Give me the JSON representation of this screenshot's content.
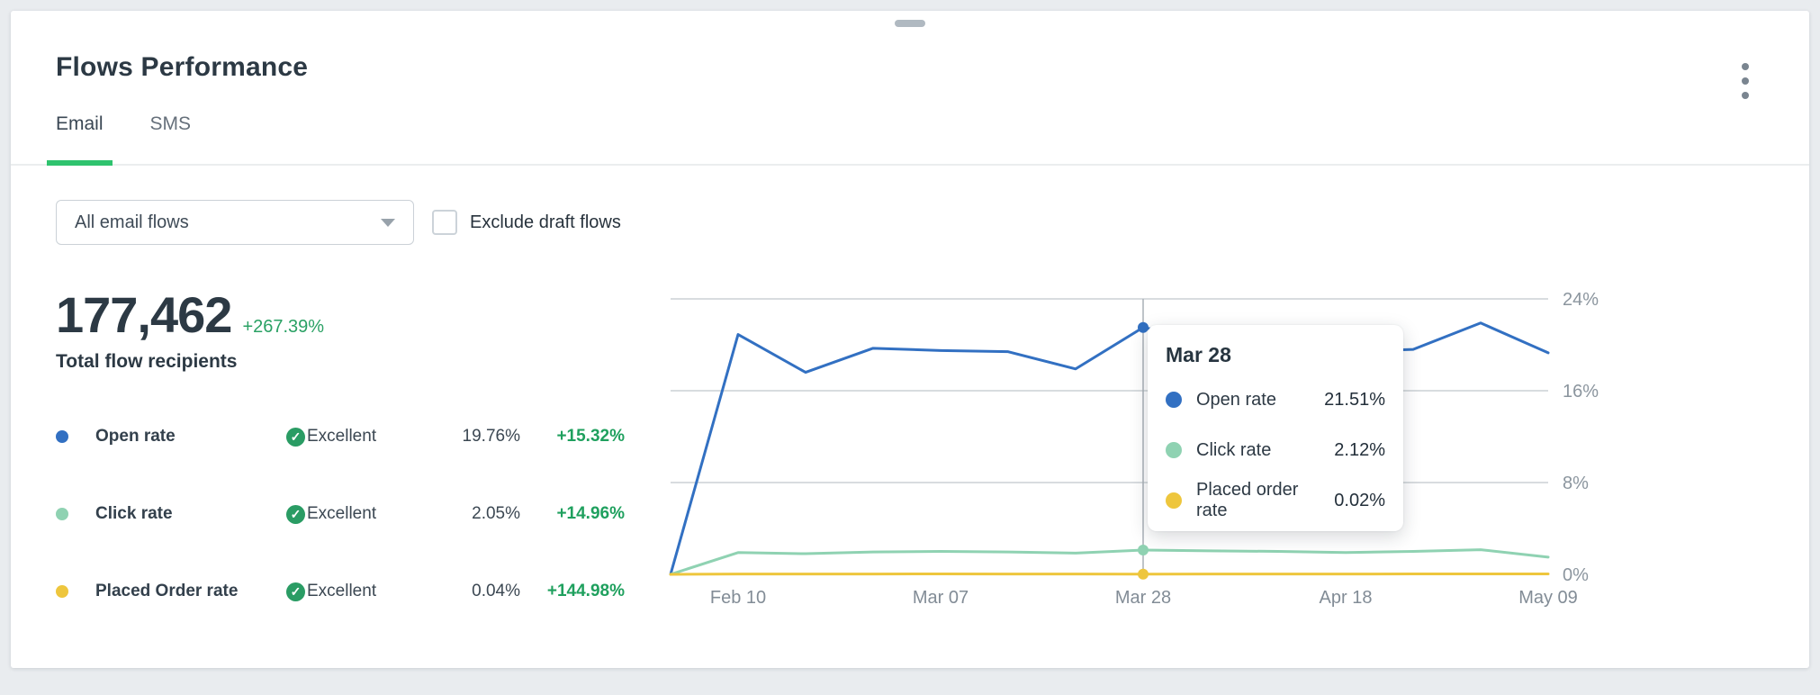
{
  "card": {
    "title": "Flows Performance",
    "tabs": [
      {
        "label": "Email",
        "active": true
      },
      {
        "label": "SMS",
        "active": false
      }
    ],
    "controls": {
      "flow_select_value": "All email flows",
      "exclude_draft_label": "Exclude draft flows",
      "exclude_draft_checked": false
    },
    "summary": {
      "value": "177,462",
      "change": "+267.39%",
      "label": "Total flow recipients"
    },
    "metrics": [
      {
        "label": "Open rate",
        "dot_color": "#3270c2",
        "rating": "Excellent",
        "value": "19.76%",
        "change": "+15.32%"
      },
      {
        "label": "Click rate",
        "dot_color": "#8fd2b2",
        "rating": "Excellent",
        "value": "2.05%",
        "change": "+14.96%"
      },
      {
        "label": "Placed Order rate",
        "dot_color": "#eec63d",
        "rating": "Excellent",
        "value": "0.04%",
        "change": "+144.98%"
      }
    ]
  },
  "colors": {
    "accent_green": "#2fc36e",
    "positive_green": "#1fa05e",
    "check_green": "#2a9c64",
    "open_rate_blue": "#3270c2",
    "click_rate_teal": "#8fd2b2",
    "placed_order_yellow": "#eec63d"
  },
  "chart_data": {
    "type": "line",
    "ylim": [
      0,
      24
    ],
    "grid": true,
    "legend_position": "none",
    "y_ticks": [
      {
        "label": "24%",
        "value": 24
      },
      {
        "label": "16%",
        "value": 16
      },
      {
        "label": "8%",
        "value": 8
      },
      {
        "label": "0%",
        "value": 0
      }
    ],
    "x_ticks": [
      {
        "label": "Feb 10",
        "index": 1
      },
      {
        "label": "Mar 07",
        "index": 4
      },
      {
        "label": "Mar 28",
        "index": 7
      },
      {
        "label": "Apr 18",
        "index": 10
      },
      {
        "label": "May 09",
        "index": 13
      }
    ],
    "series": [
      {
        "name": "Open rate",
        "color": "#3270c2",
        "values": [
          0,
          20.9,
          17.6,
          19.7,
          19.5,
          19.4,
          17.9,
          21.51,
          20.4,
          19.9,
          19.4,
          19.6,
          21.9,
          19.3
        ]
      },
      {
        "name": "Click rate",
        "color": "#8fd2b2",
        "values": [
          0,
          1.9,
          1.8,
          1.95,
          2.0,
          1.95,
          1.85,
          2.12,
          2.05,
          2.0,
          1.9,
          2.0,
          2.15,
          1.5
        ]
      },
      {
        "name": "Placed order rate",
        "color": "#eec63d",
        "values": [
          0,
          0.03,
          0.03,
          0.03,
          0.04,
          0.03,
          0.03,
          0.02,
          0.03,
          0.03,
          0.03,
          0.04,
          0.04,
          0.04
        ]
      }
    ],
    "marker_index": 7,
    "tooltip": {
      "title": "Mar 28",
      "rows": [
        {
          "label": "Open rate",
          "value": "21.51%",
          "color": "#3270c2"
        },
        {
          "label": "Click rate",
          "value": "2.12%",
          "color": "#8fd2b2"
        },
        {
          "label": "Placed order rate",
          "value": "0.02%",
          "color": "#eec63d"
        }
      ]
    }
  }
}
